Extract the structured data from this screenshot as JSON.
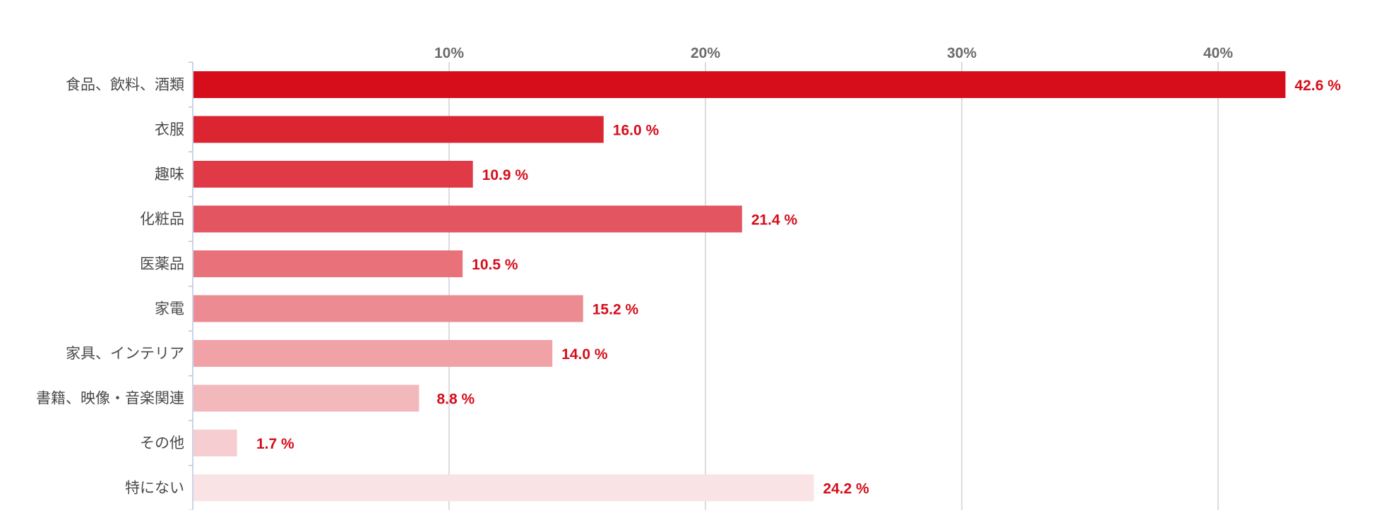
{
  "chart_data": {
    "type": "bar",
    "orientation": "horizontal",
    "title": "",
    "xlabel": "",
    "ylabel": "",
    "xlim": [
      0,
      45
    ],
    "ticks": [
      {
        "value": 10,
        "label": "10%"
      },
      {
        "value": 20,
        "label": "20%"
      },
      {
        "value": 30,
        "label": "30%"
      },
      {
        "value": 40,
        "label": "40%"
      }
    ],
    "grid": true,
    "legend": "none",
    "categories": [
      "食品、飲料、酒類",
      "衣服",
      "趣味",
      "化粧品",
      "医薬品",
      "家電",
      "家具、インテリア",
      "書籍、映像・音楽関連",
      "その他",
      "特にない"
    ],
    "values": [
      42.6,
      16.0,
      10.9,
      21.4,
      10.5,
      15.2,
      14.0,
      8.8,
      1.7,
      24.2
    ],
    "value_labels": [
      "42.6 %",
      "16.0 %",
      "10.9 %",
      "21.4 %",
      "10.5 %",
      "15.2 %",
      "14.0 %",
      "8.8 %",
      "1.7 %",
      "24.2 %"
    ],
    "bar_colors": [
      "#d60d1a",
      "#db2632",
      "#df3a46",
      "#e35560",
      "#e8717a",
      "#ec8b92",
      "#f0a2a7",
      "#f3b8bc",
      "#f6cdd0",
      "#fae3e4"
    ],
    "label_color": "#d60d1a"
  }
}
